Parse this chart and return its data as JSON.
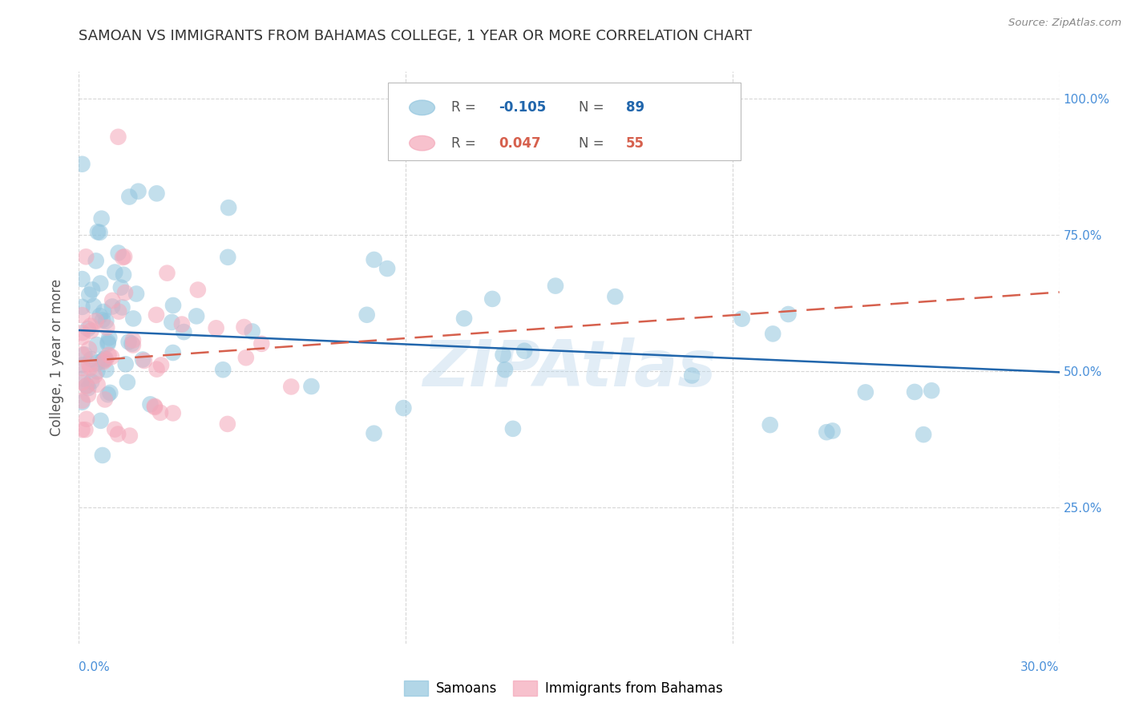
{
  "title": "SAMOAN VS IMMIGRANTS FROM BAHAMAS COLLEGE, 1 YEAR OR MORE CORRELATION CHART",
  "source": "Source: ZipAtlas.com",
  "ylabel": "College, 1 year or more",
  "xlim": [
    0.0,
    0.3
  ],
  "ylim": [
    0.0,
    1.05
  ],
  "legend_blue_R": "-0.105",
  "legend_blue_N": "89",
  "legend_pink_R": "0.047",
  "legend_pink_N": "55",
  "blue_color": "#92c5de",
  "pink_color": "#f4a7b9",
  "blue_line_color": "#2166ac",
  "pink_line_color": "#d6604d",
  "watermark": "ZIPAtlas",
  "background_color": "#ffffff",
  "grid_color": "#cccccc",
  "title_color": "#333333",
  "axis_label_color": "#4a90d9",
  "blue_line_y0": 0.575,
  "blue_line_y1": 0.498,
  "pink_line_y0": 0.518,
  "pink_line_y1": 0.645
}
